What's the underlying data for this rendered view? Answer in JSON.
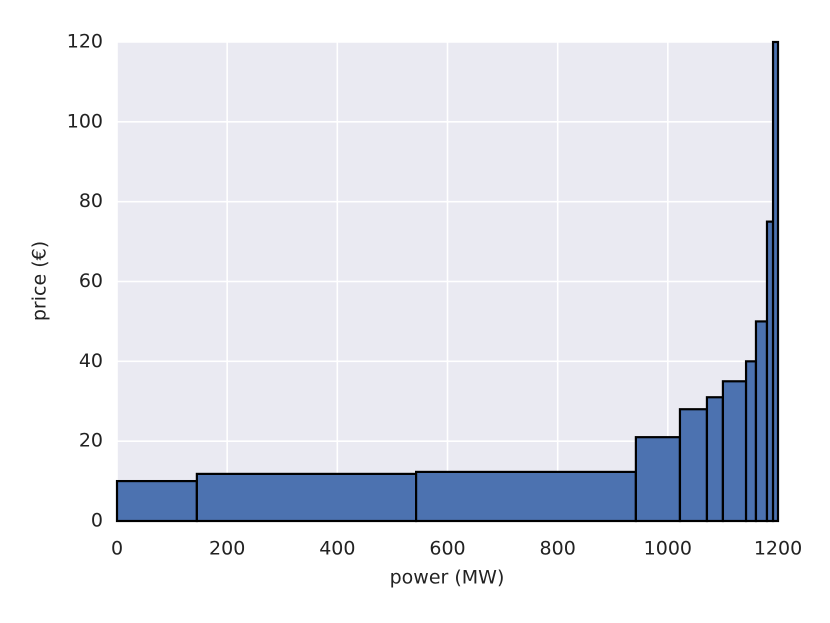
{
  "chart_data": {
    "type": "histogram",
    "xlabel": "power (MW)",
    "ylabel": "price (€)",
    "bins": [
      0,
      145,
      543,
      942,
      1022,
      1071,
      1100,
      1142,
      1160,
      1180,
      1191,
      1200
    ],
    "values": [
      10,
      11.8,
      12.3,
      21,
      28,
      31,
      35,
      40,
      50,
      75,
      120
    ],
    "color": "#4c72b0",
    "edgecolor": "#000000",
    "xlim": [
      0,
      1200
    ],
    "xticks": [
      0,
      200,
      400,
      600,
      800,
      1000,
      1200
    ],
    "ylim": [
      0,
      120
    ],
    "yticks": [
      0,
      20,
      40,
      60,
      80,
      100,
      120
    ],
    "grid": true
  }
}
